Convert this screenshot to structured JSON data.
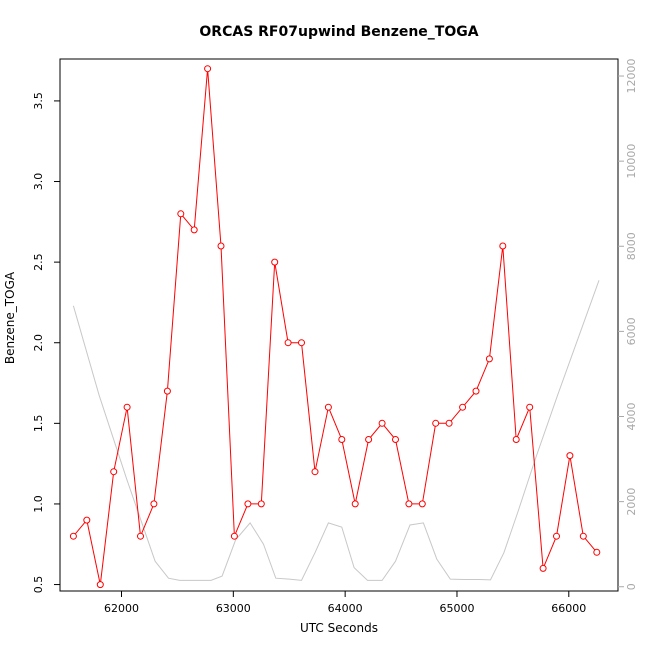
{
  "chart_data": {
    "type": "line",
    "title": "ORCAS RF07upwind Benzene_TOGA",
    "xlabel": "UTC Seconds",
    "ylabel": "Benzene_TOGA",
    "xlim": [
      61450,
      66440
    ],
    "ylim": [
      0.46,
      3.76
    ],
    "y2lim": [
      -100,
      12400
    ],
    "x_ticks": [
      62000,
      63000,
      64000,
      65000,
      66000
    ],
    "y_ticks": [
      0.5,
      1.0,
      1.5,
      2.0,
      2.5,
      3.0,
      3.5
    ],
    "y_tick_labels": [
      "0.5",
      "1.0",
      "1.5",
      "2.0",
      "2.5",
      "3.0",
      "3.5"
    ],
    "y2_ticks": [
      0,
      2000,
      4000,
      6000,
      8000,
      10000,
      12000
    ],
    "grid": false,
    "series": [
      {
        "axis": "left",
        "color": "#ff0000",
        "marker": "open-circle",
        "x": [
          61570,
          61690,
          61810,
          61930,
          62050,
          62170,
          62290,
          62410,
          62530,
          62650,
          62770,
          62890,
          63010,
          63130,
          63250,
          63370,
          63490,
          63610,
          63730,
          63850,
          63970,
          64090,
          64210,
          64330,
          64450,
          64570,
          64690,
          64810,
          64930,
          65050,
          65170,
          65290,
          65410,
          65530,
          65650,
          65770,
          65890,
          66010,
          66130,
          66250
        ],
        "values": [
          0.8,
          0.9,
          0.5,
          1.2,
          1.6,
          0.8,
          1.0,
          1.7,
          2.8,
          2.7,
          3.7,
          2.6,
          0.8,
          1.0,
          1.0,
          2.5,
          2.0,
          2.0,
          1.2,
          1.6,
          1.4,
          1.0,
          1.4,
          1.5,
          1.4,
          1.0,
          1.0,
          1.5,
          1.5,
          1.6,
          1.7,
          1.9,
          2.6,
          1.4,
          1.6,
          0.6,
          0.8,
          1.3,
          0.8,
          0.7
        ]
      },
      {
        "axis": "right",
        "color": "#c8c8c8",
        "marker": "none",
        "x": [
          61570,
          61800,
          62050,
          62300,
          62420,
          62520,
          62650,
          62800,
          62900,
          63020,
          63150,
          63270,
          63380,
          63500,
          63610,
          63730,
          63850,
          63970,
          64080,
          64200,
          64330,
          64450,
          64580,
          64700,
          64820,
          64940,
          65060,
          65200,
          65300,
          65420,
          65550,
          65700,
          65900,
          66270
        ],
        "values": [
          6600,
          4500,
          2500,
          600,
          200,
          150,
          150,
          150,
          250,
          1100,
          1500,
          1000,
          200,
          180,
          150,
          800,
          1500,
          1400,
          450,
          150,
          150,
          600,
          1450,
          1500,
          650,
          180,
          170,
          170,
          160,
          800,
          1800,
          3000,
          4500,
          7200
        ]
      }
    ]
  }
}
